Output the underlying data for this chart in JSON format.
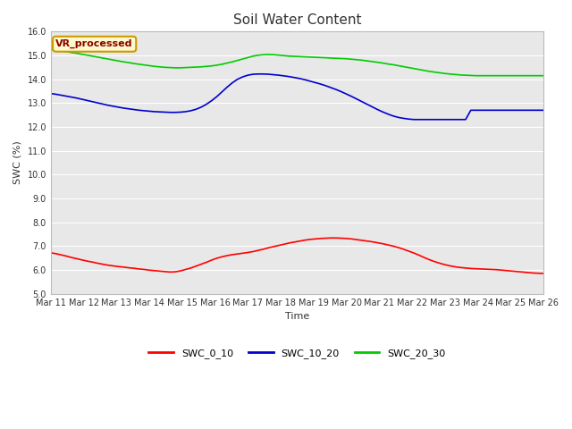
{
  "title": "Soil Water Content",
  "xlabel": "Time",
  "ylabel": "SWC (%)",
  "ylim": [
    5.0,
    16.0
  ],
  "ytick_values": [
    5.0,
    6.0,
    7.0,
    8.0,
    9.0,
    10.0,
    11.0,
    12.0,
    13.0,
    14.0,
    15.0,
    16.0
  ],
  "ytick_labels": [
    "5.0",
    "6.0",
    "7.0",
    "8.0",
    "9.0",
    "10.0",
    "11.0",
    "12.0",
    "13.0",
    "14.0",
    "15.0",
    "16.0"
  ],
  "xtick_labels": [
    "Mar 11",
    "Mar 12",
    "Mar 13",
    "Mar 14",
    "Mar 15",
    "Mar 16",
    "Mar 17",
    "Mar 18",
    "Mar 19",
    "Mar 20",
    "Mar 21",
    "Mar 22",
    "Mar 23",
    "Mar 24",
    "Mar 25",
    "Mar 26"
  ],
  "background_color": "#e8e8e8",
  "fig_background": "#ffffff",
  "annotation_text": "VR_processed",
  "annotation_color": "#8b0000",
  "annotation_bg": "#fffacd",
  "annotation_border": "#cc9900",
  "legend_labels": [
    "SWC_0_10",
    "SWC_10_20",
    "SWC_20_30"
  ],
  "legend_colors": [
    "#ff0000",
    "#0000cd",
    "#00cc00"
  ],
  "swc_0_10": [
    6.72,
    6.68,
    6.63,
    6.58,
    6.52,
    6.47,
    6.42,
    6.37,
    6.33,
    6.28,
    6.24,
    6.2,
    6.17,
    6.14,
    6.12,
    6.09,
    6.07,
    6.04,
    6.02,
    5.99,
    5.97,
    5.95,
    5.93,
    5.91,
    5.92,
    5.96,
    6.02,
    6.08,
    6.16,
    6.24,
    6.32,
    6.41,
    6.49,
    6.55,
    6.6,
    6.64,
    6.67,
    6.7,
    6.73,
    6.77,
    6.82,
    6.87,
    6.93,
    6.98,
    7.03,
    7.08,
    7.13,
    7.17,
    7.21,
    7.25,
    7.28,
    7.3,
    7.32,
    7.33,
    7.34,
    7.34,
    7.33,
    7.32,
    7.3,
    7.27,
    7.24,
    7.21,
    7.18,
    7.14,
    7.1,
    7.05,
    7.0,
    6.94,
    6.87,
    6.79,
    6.71,
    6.62,
    6.52,
    6.43,
    6.35,
    6.28,
    6.22,
    6.17,
    6.13,
    6.1,
    6.08,
    6.06,
    6.05,
    6.04,
    6.03,
    6.02,
    6.01,
    5.99,
    5.97,
    5.95,
    5.93,
    5.91,
    5.89,
    5.87,
    5.86,
    5.85
  ],
  "swc_10_20": [
    13.4,
    13.37,
    13.33,
    13.29,
    13.25,
    13.21,
    13.16,
    13.11,
    13.06,
    13.01,
    12.96,
    12.91,
    12.87,
    12.83,
    12.79,
    12.76,
    12.73,
    12.7,
    12.68,
    12.66,
    12.64,
    12.63,
    12.62,
    12.61,
    12.61,
    12.62,
    12.64,
    12.68,
    12.74,
    12.83,
    12.95,
    13.1,
    13.27,
    13.47,
    13.67,
    13.85,
    14.0,
    14.1,
    14.17,
    14.21,
    14.22,
    14.22,
    14.21,
    14.19,
    14.17,
    14.14,
    14.11,
    14.07,
    14.03,
    13.98,
    13.92,
    13.86,
    13.8,
    13.73,
    13.65,
    13.57,
    13.48,
    13.38,
    13.28,
    13.17,
    13.06,
    12.95,
    12.84,
    12.73,
    12.63,
    12.54,
    12.46,
    12.4,
    12.36,
    12.33,
    12.31,
    12.31,
    12.31,
    12.31,
    12.31,
    12.31,
    12.31,
    12.31,
    12.31,
    12.31,
    12.31,
    12.7,
    12.7,
    12.7,
    12.7,
    12.7,
    12.7,
    12.7,
    12.7,
    12.7,
    12.7,
    12.7,
    12.7,
    12.7,
    12.7,
    12.7
  ],
  "swc_20_30": [
    15.25,
    15.22,
    15.19,
    15.16,
    15.12,
    15.09,
    15.05,
    15.01,
    14.97,
    14.93,
    14.89,
    14.85,
    14.81,
    14.77,
    14.73,
    14.7,
    14.66,
    14.63,
    14.6,
    14.57,
    14.54,
    14.52,
    14.5,
    14.49,
    14.48,
    14.48,
    14.49,
    14.5,
    14.51,
    14.52,
    14.54,
    14.56,
    14.59,
    14.63,
    14.68,
    14.73,
    14.79,
    14.85,
    14.91,
    14.97,
    15.01,
    15.03,
    15.04,
    15.03,
    15.01,
    14.99,
    14.97,
    14.96,
    14.95,
    14.94,
    14.93,
    14.92,
    14.91,
    14.9,
    14.89,
    14.88,
    14.87,
    14.86,
    14.84,
    14.82,
    14.8,
    14.77,
    14.74,
    14.71,
    14.68,
    14.64,
    14.61,
    14.57,
    14.53,
    14.49,
    14.45,
    14.41,
    14.37,
    14.33,
    14.3,
    14.27,
    14.24,
    14.22,
    14.2,
    14.18,
    14.17,
    14.16,
    14.15,
    14.15,
    14.15,
    14.15,
    14.15,
    14.15,
    14.15,
    14.15,
    14.15,
    14.15,
    14.15,
    14.15,
    14.15,
    14.15
  ]
}
